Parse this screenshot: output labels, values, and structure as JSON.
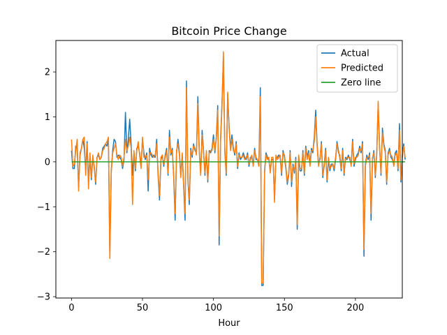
{
  "chart_data": {
    "type": "line",
    "title": "Bitcoin Price Change",
    "xlabel": "Hour",
    "ylabel": "",
    "xlim": [
      -11,
      233
    ],
    "ylim": [
      -3.03,
      2.7
    ],
    "xticks": [
      0,
      50,
      100,
      150,
      200
    ],
    "yticks": [
      -3,
      -2,
      -1,
      0,
      1,
      2
    ],
    "grid": false,
    "legend_position": "top-right",
    "series": [
      {
        "name": "Actual",
        "color": "#1f77b4",
        "values": [
          0.25,
          -0.15,
          -0.15,
          0.35,
          0.3,
          -0.55,
          0.15,
          0.3,
          0.5,
          0.3,
          -0.2,
          0.45,
          -0.45,
          0.1,
          -0.4,
          0.1,
          -0.1,
          -0.5,
          0.1,
          0.15,
          0.05,
          0.1,
          0.3,
          0.35,
          0.4,
          0.35,
          0.5,
          -2.05,
          -0.2,
          0.25,
          0.5,
          0.45,
          0.1,
          0.15,
          0.1,
          0.05,
          -0.15,
          0.05,
          1.1,
          0.2,
          0.5,
          0.95,
          0.4,
          -0.3,
          0.2,
          -0.2,
          0.3,
          0.35,
          0.2,
          -0.1,
          0.5,
          0.2,
          0.05,
          0.2,
          -0.65,
          0.3,
          0.15,
          0.1,
          0.15,
          0.1,
          0.5,
          -0.3,
          -0.85,
          0.05,
          0.15,
          -0.1,
          0.15,
          0.3,
          -0.3,
          0.7,
          0.15,
          0.3,
          -0.35,
          -1.3,
          0.2,
          0.5,
          0.2,
          -0.3,
          0.15,
          -0.55,
          -1.3,
          1.8,
          -0.4,
          -0.95,
          0.3,
          0.1,
          0.4,
          0.25,
          0.2,
          1.45,
          0.25,
          -0.25,
          0.7,
          0.25,
          -0.3,
          0.2,
          -0.45,
          0.25,
          0.2,
          0.3,
          0.6,
          0.2,
          0.55,
          1.25,
          -1.85,
          0.5,
          1.3,
          2.35,
          0.25,
          -0.3,
          1.5,
          0.8,
          0.3,
          0.6,
          0.3,
          0.15,
          0.45,
          -0.15,
          0.2,
          0.05,
          0.1,
          0.2,
          0.1,
          0.05,
          0.2,
          -0.1,
          0.1,
          0.1,
          -0.05,
          0.3,
          0.05,
          0.05,
          -0.05,
          1.65,
          -2.75,
          -2.75,
          -0.2,
          0.2,
          0.1,
          0.05,
          -0.2,
          0.05,
          0.05,
          -0.85,
          0.1,
          0.1,
          0.15,
          0.1,
          -0.3,
          0.25,
          0.1,
          -0.15,
          -0.5,
          -0.3,
          0.25,
          -0.55,
          -0.05,
          -0.25,
          0.1,
          -1.5,
          0.1,
          -0.2,
          -0.2,
          0.25,
          -0.3,
          0.35,
          0.1,
          0.25,
          -0.05,
          0.3,
          0.2,
          0.55,
          1.15,
          0.4,
          -0.05,
          0.05,
          0.45,
          -0.35,
          -0.05,
          0.3,
          -0.45,
          0.05,
          -0.2,
          -0.05,
          -0.05,
          -0.2,
          0.05,
          0.45,
          0.25,
          0.1,
          -0.2,
          0.3,
          -0.3,
          0.1,
          0.05,
          0.15,
          0.05,
          -0.05,
          0.5,
          -0.1,
          0.05,
          0.15,
          0.2,
          0.35,
          0.2,
          0.45,
          -2.1,
          -0.05,
          0.15,
          0.05,
          0.2,
          -1.3,
          0.05,
          0.25,
          -0.35,
          0.2,
          1.3,
          0.35,
          -0.3,
          0.75,
          0.4,
          0.25,
          -0.5,
          0.2,
          0.3,
          0.1,
          0.05,
          -0.05,
          0.2,
          0.25,
          -0.2,
          0.85,
          -0.45,
          0.15,
          0.4,
          0.05
        ]
      },
      {
        "name": "Predicted",
        "color": "#ff7f0e",
        "values": [
          0.5,
          -0.1,
          -0.05,
          0.25,
          0.5,
          -0.65,
          0.2,
          0.3,
          0.5,
          0.55,
          -0.3,
          0.4,
          -0.6,
          0.2,
          -0.35,
          0.15,
          -0.15,
          -0.45,
          0.1,
          0.2,
          0.05,
          0.1,
          0.25,
          0.3,
          0.4,
          0.45,
          0.55,
          -2.15,
          -0.25,
          0.2,
          0.3,
          0.4,
          0.15,
          0.05,
          0.15,
          0.1,
          -0.1,
          0.1,
          0.5,
          0.25,
          0.35,
          0.55,
          0.3,
          -0.95,
          0.25,
          -0.15,
          0.25,
          0.45,
          0.15,
          -0.15,
          0.55,
          0.1,
          0.1,
          0.15,
          -0.4,
          0.2,
          0.2,
          0.15,
          0.1,
          0.15,
          0.4,
          -0.25,
          -0.75,
          0.1,
          0.15,
          -0.05,
          0.1,
          0.25,
          -0.25,
          0.55,
          0.2,
          0.25,
          -0.3,
          -1.15,
          0.25,
          0.4,
          0.15,
          -0.35,
          0.2,
          -0.5,
          -1.15,
          1.65,
          -0.35,
          -0.85,
          0.25,
          0.15,
          0.35,
          0.3,
          0.15,
          1.3,
          0.2,
          -0.3,
          0.6,
          0.2,
          -0.25,
          0.25,
          -0.4,
          0.2,
          0.25,
          0.25,
          0.5,
          0.25,
          0.5,
          1.15,
          -1.65,
          0.45,
          1.2,
          2.45,
          0.2,
          -0.25,
          1.55,
          0.75,
          0.25,
          0.5,
          0.25,
          0.2,
          0.4,
          -0.1,
          0.15,
          0.1,
          0.1,
          0.15,
          0.05,
          0.1,
          0.15,
          -0.05,
          0.05,
          0.15,
          -0.1,
          0.25,
          0.1,
          0.05,
          -0.1,
          1.45,
          -2.7,
          -2.7,
          -0.25,
          0.15,
          0.05,
          0.1,
          -0.25,
          0.1,
          0.1,
          -0.9,
          0.15,
          0.05,
          0.1,
          0.15,
          -0.25,
          0.2,
          0.15,
          -0.1,
          -0.45,
          -0.25,
          0.2,
          -0.45,
          -0.1,
          -0.2,
          0.05,
          -1.4,
          0.15,
          -0.15,
          -0.15,
          0.2,
          -0.25,
          0.3,
          0.05,
          0.2,
          -0.1,
          0.25,
          0.25,
          0.45,
          1.0,
          0.35,
          -0.1,
          0.1,
          0.4,
          -0.3,
          -0.1,
          0.25,
          -0.4,
          0.1,
          -0.15,
          -0.1,
          -0.05,
          -0.15,
          0.1,
          0.4,
          0.2,
          0.15,
          -0.15,
          0.25,
          -0.25,
          0.05,
          0.1,
          0.1,
          0.1,
          -0.1,
          0.45,
          -0.05,
          0.1,
          0.1,
          0.15,
          0.3,
          0.25,
          0.4,
          -1.95,
          -0.1,
          0.1,
          0.1,
          0.15,
          -1.15,
          0.1,
          0.2,
          -0.3,
          0.15,
          1.35,
          0.3,
          -0.25,
          0.65,
          0.35,
          0.2,
          -0.45,
          0.15,
          0.25,
          0.15,
          0.1,
          -0.1,
          0.15,
          0.2,
          -0.15,
          0.7,
          -0.4,
          0.1,
          0.35,
          0.1
        ]
      },
      {
        "name": "Zero line",
        "color": "#2ca02c",
        "values": [
          0,
          0
        ]
      }
    ]
  }
}
